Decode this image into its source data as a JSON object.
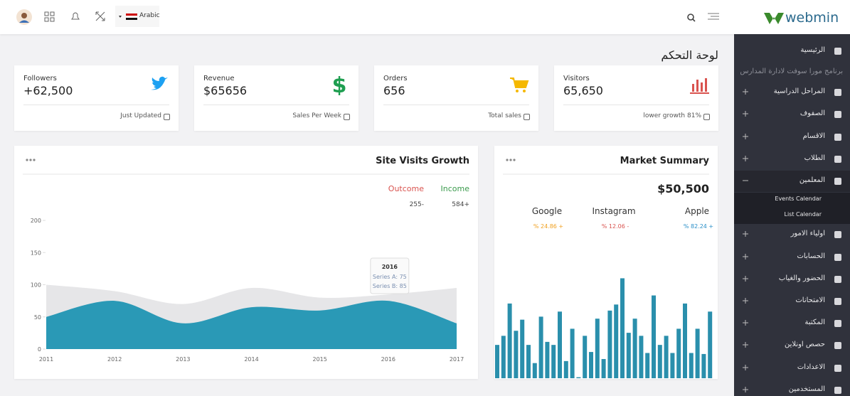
{
  "header": {
    "language": "Arabic",
    "logo": "webmin"
  },
  "sidebar": {
    "items": [
      {
        "label": "الرئيسية"
      },
      {
        "label": "برنامج مورا سوفت لادارة المدارس"
      },
      {
        "label": "المراحل الدراسية"
      },
      {
        "label": "الصفوف"
      },
      {
        "label": "الاقسام"
      },
      {
        "label": "الطلاب"
      },
      {
        "label": "المعلمين"
      },
      {
        "label": "Events Calendar"
      },
      {
        "label": "List Calendar"
      },
      {
        "label": "اولياء الامور"
      },
      {
        "label": "الحسابات"
      },
      {
        "label": "الحضور والغياب"
      },
      {
        "label": "الامتحانات"
      },
      {
        "label": "المكتبة"
      },
      {
        "label": "حصص اونلاين"
      },
      {
        "label": "الاعدادات"
      },
      {
        "label": "المستخدمين"
      }
    ]
  },
  "page_title": "لوحة التحكم",
  "stats": [
    {
      "label": "Followers",
      "value": "+62,500",
      "footer": "Just Updated"
    },
    {
      "label": "Revenue",
      "value": "$65656",
      "footer": "Sales Per Week"
    },
    {
      "label": "Orders",
      "value": "656",
      "footer": "Total sales"
    },
    {
      "label": "Visitors",
      "value": "65,650",
      "footer": "lower growth 81%"
    }
  ],
  "site_visits": {
    "type": "area",
    "title": "Site Visits Growth",
    "legend": [
      {
        "name": "Outcome",
        "value": "255-"
      },
      {
        "name": "Income",
        "value": "584+"
      }
    ],
    "categories": [
      "2011",
      "2012",
      "2013",
      "2014",
      "2015",
      "2016",
      "2017"
    ],
    "series": [
      {
        "name": "Series B",
        "color": "#e6e6e8",
        "values": [
          100,
          90,
          70,
          95,
          80,
          85,
          95
        ]
      },
      {
        "name": "Series A",
        "color": "#2a99b6",
        "values": [
          50,
          75,
          40,
          65,
          60,
          75,
          40
        ]
      }
    ],
    "tooltip_index": 5,
    "ylim": [
      0,
      200
    ],
    "yticks": [
      0,
      50,
      100,
      150,
      200
    ]
  },
  "market_summary": {
    "type": "bar",
    "title": "Market Summary",
    "total": "$50,500",
    "columns": [
      {
        "name": "Google",
        "change": "% 24.86 +"
      },
      {
        "name": "Instagram",
        "change": "% 12.06 -"
      },
      {
        "name": "Apple",
        "change": "% 82.24 +"
      }
    ],
    "color": "#2a8fac",
    "values": [
      33,
      42,
      74,
      47,
      58,
      33,
      15,
      61,
      36,
      33,
      66,
      17,
      49,
      1,
      42,
      26,
      59,
      19,
      67,
      73,
      99,
      45,
      59,
      42,
      25,
      82,
      33,
      42,
      25,
      49,
      74,
      25,
      49,
      24,
      66
    ]
  }
}
